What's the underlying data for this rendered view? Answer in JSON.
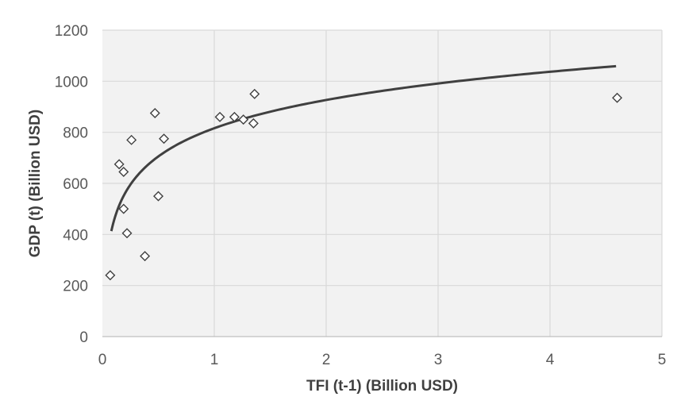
{
  "chart_data": {
    "type": "scatter",
    "title": "",
    "xlabel": "TFI (t-1)  (Billion USD)",
    "ylabel": "GDP (t) (Billion USD)",
    "xlim": [
      0,
      5
    ],
    "ylim": [
      0,
      1200
    ],
    "x_ticks": [
      "0",
      "1",
      "2",
      "3",
      "4",
      "5"
    ],
    "y_ticks": [
      "0",
      "200",
      "400",
      "600",
      "800",
      "1000",
      "1200"
    ],
    "grid": true,
    "legend": "none",
    "series": [
      {
        "marker": "diamond-open",
        "points": [
          {
            "x": 0.07,
            "y": 240
          },
          {
            "x": 0.15,
            "y": 675
          },
          {
            "x": 0.19,
            "y": 645
          },
          {
            "x": 0.19,
            "y": 500
          },
          {
            "x": 0.22,
            "y": 405
          },
          {
            "x": 0.26,
            "y": 770
          },
          {
            "x": 0.38,
            "y": 315
          },
          {
            "x": 0.47,
            "y": 875
          },
          {
            "x": 0.5,
            "y": 550
          },
          {
            "x": 0.55,
            "y": 775
          },
          {
            "x": 1.05,
            "y": 860
          },
          {
            "x": 1.18,
            "y": 860
          },
          {
            "x": 1.26,
            "y": 850
          },
          {
            "x": 1.35,
            "y": 835
          },
          {
            "x": 1.36,
            "y": 950
          },
          {
            "x": 4.6,
            "y": 935
          }
        ]
      }
    ],
    "trendline": {
      "type": "logarithmic",
      "x_start": 0.08,
      "x_end": 4.59,
      "a": 816,
      "b": 159.5
    },
    "colors": {
      "marker": "#404040",
      "trendline": "#404040",
      "grid": "#d9d9d9",
      "plot_bg": "#f2f2f2",
      "axis": "#bfbfbf"
    }
  }
}
